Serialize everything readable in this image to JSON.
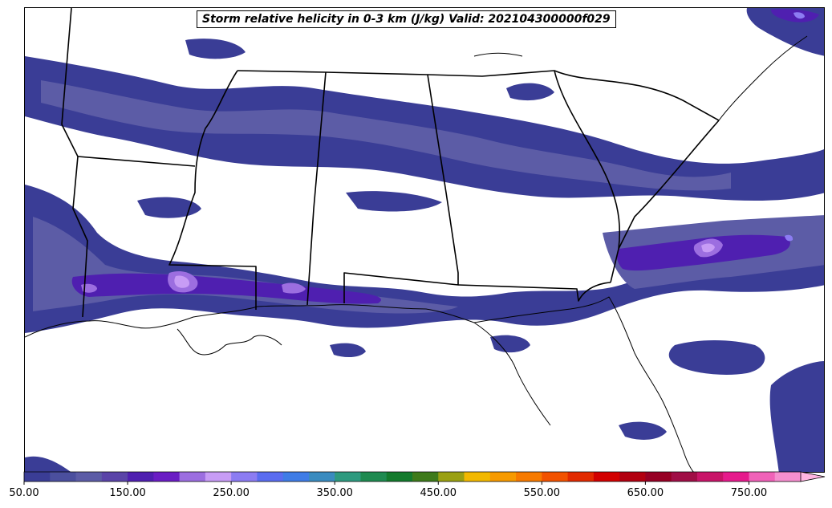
{
  "title": "Storm relative helicity in 0-3 km (J/kg) Valid: 202104300000f029",
  "colorbar": {
    "min": 50,
    "max": 800,
    "step": 25,
    "extend": "max",
    "tick_labels": [
      "50.00",
      "150.00",
      "250.00",
      "350.00",
      "450.00",
      "550.00",
      "650.00",
      "750.00"
    ],
    "tick_values": [
      50,
      150,
      250,
      350,
      450,
      550,
      650,
      750
    ],
    "colors": [
      "#3a3d96",
      "#4b4f9e",
      "#5c5ca6",
      "#5a44a8",
      "#4f1fb0",
      "#6a1dc4",
      "#9c6ee0",
      "#c79cf5",
      "#8c7cf2",
      "#5a6cf0",
      "#3f7ce6",
      "#3a8bbf",
      "#2e9a7f",
      "#1e8a50",
      "#137a2c",
      "#3e7a1a",
      "#9aa012",
      "#f2b800",
      "#f79a00",
      "#f77a00",
      "#f25200",
      "#e22a00",
      "#d20000",
      "#b20010",
      "#960024",
      "#a00e46",
      "#c81468",
      "#e61a8c",
      "#f062b8",
      "#f58fcf"
    ],
    "extend_color": "#ffb4e0"
  },
  "map": {
    "projection": "lambert-conformal",
    "fill_color": "#3a3d96",
    "shading_colors": [
      "#3a3d96",
      "#5c5ca6",
      "#4f1fb0",
      "#9c6ee0",
      "#c79cf5",
      "#8c7cf2",
      "#3f7ce6"
    ],
    "border_color": "#000000"
  }
}
